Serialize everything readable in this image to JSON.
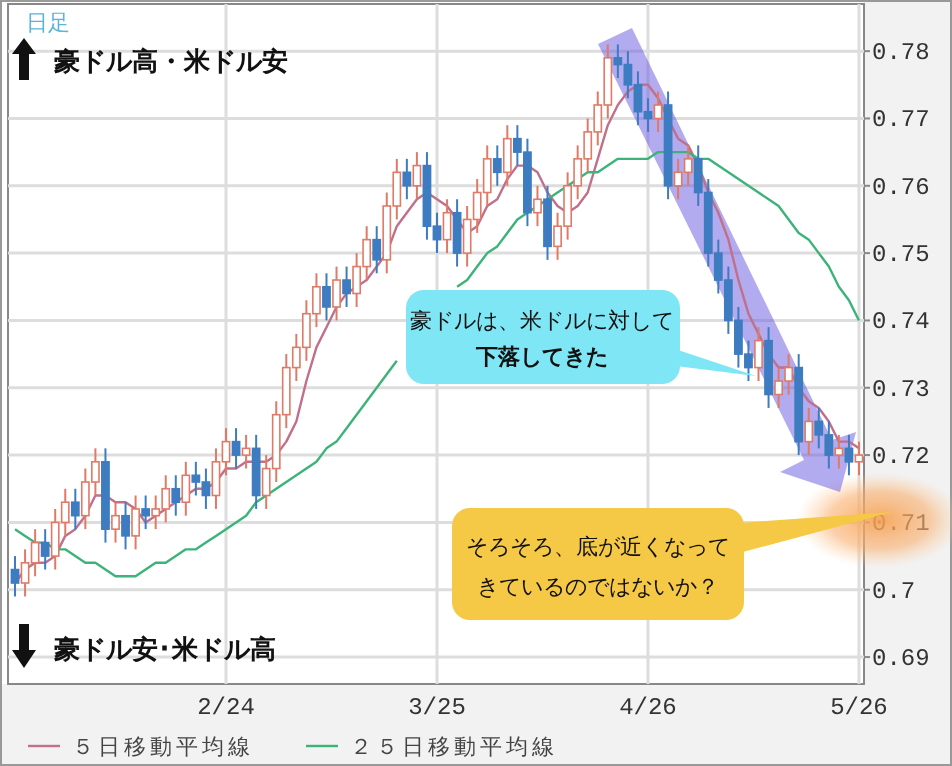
{
  "chart_data": {
    "type": "candlestick",
    "categories": [
      null,
      null,
      null,
      null,
      null,
      null,
      null,
      null,
      null,
      null,
      null,
      null,
      null,
      null,
      null,
      null,
      null,
      null,
      null,
      null,
      null,
      "2/24",
      null,
      null,
      null,
      null,
      null,
      null,
      null,
      null,
      null,
      null,
      null,
      null,
      null,
      null,
      null,
      null,
      null,
      null,
      null,
      null,
      "3/25",
      null,
      null,
      null,
      null,
      null,
      null,
      null,
      null,
      null,
      null,
      null,
      null,
      null,
      null,
      null,
      null,
      null,
      null,
      null,
      null,
      "4/26",
      null,
      null,
      null,
      null,
      null,
      null,
      null,
      null,
      null,
      null,
      null,
      null,
      null,
      null,
      null,
      null,
      null,
      null,
      null,
      null,
      "5/26"
    ],
    "ohlc": [
      [
        0.703,
        0.705,
        0.699,
        0.701
      ],
      [
        0.701,
        0.706,
        0.699,
        0.704
      ],
      [
        0.704,
        0.709,
        0.702,
        0.707
      ],
      [
        0.707,
        0.709,
        0.703,
        0.705
      ],
      [
        0.705,
        0.712,
        0.703,
        0.71
      ],
      [
        0.71,
        0.715,
        0.708,
        0.713
      ],
      [
        0.713,
        0.715,
        0.709,
        0.711
      ],
      [
        0.711,
        0.718,
        0.709,
        0.716
      ],
      [
        0.716,
        0.721,
        0.714,
        0.719
      ],
      [
        0.719,
        0.721,
        0.707,
        0.709
      ],
      [
        0.709,
        0.713,
        0.707,
        0.711
      ],
      [
        0.711,
        0.713,
        0.706,
        0.708
      ],
      [
        0.708,
        0.714,
        0.706,
        0.712
      ],
      [
        0.712,
        0.714,
        0.709,
        0.711
      ],
      [
        0.711,
        0.714,
        0.709,
        0.712
      ],
      [
        0.712,
        0.717,
        0.71,
        0.715
      ],
      [
        0.715,
        0.717,
        0.711,
        0.713
      ],
      [
        0.713,
        0.719,
        0.711,
        0.717
      ],
      [
        0.717,
        0.719,
        0.714,
        0.716
      ],
      [
        0.716,
        0.718,
        0.712,
        0.714
      ],
      [
        0.714,
        0.721,
        0.712,
        0.719
      ],
      [
        0.719,
        0.724,
        0.717,
        0.722
      ],
      [
        0.722,
        0.724,
        0.718,
        0.72
      ],
      [
        0.72,
        0.723,
        0.718,
        0.721
      ],
      [
        0.721,
        0.723,
        0.712,
        0.714
      ],
      [
        0.714,
        0.72,
        0.712,
        0.718
      ],
      [
        0.718,
        0.728,
        0.716,
        0.726
      ],
      [
        0.726,
        0.735,
        0.724,
        0.733
      ],
      [
        0.733,
        0.738,
        0.731,
        0.736
      ],
      [
        0.736,
        0.743,
        0.734,
        0.741
      ],
      [
        0.741,
        0.747,
        0.739,
        0.745
      ],
      [
        0.745,
        0.747,
        0.74,
        0.742
      ],
      [
        0.742,
        0.748,
        0.74,
        0.746
      ],
      [
        0.746,
        0.748,
        0.742,
        0.744
      ],
      [
        0.744,
        0.75,
        0.742,
        0.748
      ],
      [
        0.748,
        0.754,
        0.746,
        0.752
      ],
      [
        0.752,
        0.754,
        0.747,
        0.749
      ],
      [
        0.749,
        0.759,
        0.747,
        0.757
      ],
      [
        0.757,
        0.764,
        0.755,
        0.762
      ],
      [
        0.762,
        0.764,
        0.758,
        0.76
      ],
      [
        0.76,
        0.765,
        0.758,
        0.763
      ],
      [
        0.763,
        0.765,
        0.752,
        0.754
      ],
      [
        0.754,
        0.756,
        0.75,
        0.752
      ],
      [
        0.752,
        0.758,
        0.75,
        0.756
      ],
      [
        0.756,
        0.758,
        0.748,
        0.75
      ],
      [
        0.75,
        0.757,
        0.748,
        0.755
      ],
      [
        0.755,
        0.761,
        0.753,
        0.759
      ],
      [
        0.759,
        0.766,
        0.757,
        0.764
      ],
      [
        0.764,
        0.766,
        0.76,
        0.762
      ],
      [
        0.762,
        0.769,
        0.76,
        0.767
      ],
      [
        0.767,
        0.769,
        0.763,
        0.765
      ],
      [
        0.765,
        0.767,
        0.754,
        0.756
      ],
      [
        0.756,
        0.76,
        0.754,
        0.758
      ],
      [
        0.758,
        0.76,
        0.749,
        0.751
      ],
      [
        0.751,
        0.756,
        0.749,
        0.754
      ],
      [
        0.754,
        0.762,
        0.752,
        0.76
      ],
      [
        0.76,
        0.766,
        0.758,
        0.764
      ],
      [
        0.764,
        0.77,
        0.762,
        0.768
      ],
      [
        0.768,
        0.774,
        0.766,
        0.772
      ],
      [
        0.772,
        0.781,
        0.77,
        0.779
      ],
      [
        0.779,
        0.781,
        0.776,
        0.778
      ],
      [
        0.778,
        0.78,
        0.773,
        0.775
      ],
      [
        0.775,
        0.777,
        0.769,
        0.771
      ],
      [
        0.771,
        0.773,
        0.768,
        0.77
      ],
      [
        0.77,
        0.774,
        0.768,
        0.772
      ],
      [
        0.772,
        0.774,
        0.758,
        0.76
      ],
      [
        0.76,
        0.764,
        0.758,
        0.762
      ],
      [
        0.762,
        0.766,
        0.76,
        0.764
      ],
      [
        0.764,
        0.766,
        0.757,
        0.759
      ],
      [
        0.759,
        0.761,
        0.748,
        0.75
      ],
      [
        0.75,
        0.752,
        0.744,
        0.746
      ],
      [
        0.746,
        0.748,
        0.738,
        0.74
      ],
      [
        0.74,
        0.742,
        0.733,
        0.735
      ],
      [
        0.735,
        0.737,
        0.731,
        0.733
      ],
      [
        0.733,
        0.739,
        0.731,
        0.737
      ],
      [
        0.737,
        0.739,
        0.727,
        0.729
      ],
      [
        0.729,
        0.733,
        0.727,
        0.731
      ],
      [
        0.731,
        0.735,
        0.729,
        0.733
      ],
      [
        0.733,
        0.735,
        0.72,
        0.722
      ],
      [
        0.722,
        0.727,
        0.72,
        0.725
      ],
      [
        0.725,
        0.727,
        0.721,
        0.723
      ],
      [
        0.723,
        0.725,
        0.718,
        0.72
      ],
      [
        0.72,
        0.723,
        0.718,
        0.721
      ],
      [
        0.721,
        0.723,
        0.717,
        0.719
      ],
      [
        0.719,
        0.722,
        0.717,
        0.72
      ]
    ],
    "series": [
      {
        "name": "５日移動平均線",
        "type": "line",
        "color": "#c0708a",
        "values": [
          0.701,
          0.703,
          0.704,
          0.704,
          0.705,
          0.708,
          0.709,
          0.711,
          0.714,
          0.714,
          0.713,
          0.713,
          0.712,
          0.71,
          0.711,
          0.712,
          0.713,
          0.714,
          0.715,
          0.715,
          0.716,
          0.718,
          0.718,
          0.719,
          0.719,
          0.719,
          0.72,
          0.722,
          0.725,
          0.731,
          0.736,
          0.739,
          0.742,
          0.744,
          0.745,
          0.746,
          0.748,
          0.75,
          0.754,
          0.756,
          0.758,
          0.759,
          0.758,
          0.757,
          0.755,
          0.753,
          0.754,
          0.757,
          0.758,
          0.761,
          0.763,
          0.763,
          0.762,
          0.759,
          0.757,
          0.756,
          0.757,
          0.759,
          0.764,
          0.769,
          0.772,
          0.774,
          0.775,
          0.775,
          0.773,
          0.77,
          0.767,
          0.766,
          0.763,
          0.759,
          0.756,
          0.752,
          0.746,
          0.741,
          0.738,
          0.735,
          0.733,
          0.733,
          0.73,
          0.728,
          0.727,
          0.725,
          0.722,
          0.722,
          0.721
        ]
      },
      {
        "name": "２５日移動平均線",
        "type": "line",
        "color": "#3cb37a",
        "values": [
          0.709,
          0.708,
          0.707,
          0.707,
          0.706,
          0.706,
          0.705,
          0.704,
          0.704,
          0.703,
          0.702,
          0.702,
          0.702,
          0.703,
          0.704,
          0.704,
          0.705,
          0.706,
          0.706,
          0.707,
          0.708,
          0.709,
          0.71,
          0.711,
          0.713,
          0.714,
          0.715,
          0.716,
          0.717,
          0.718,
          0.719,
          0.721,
          0.722,
          0.724,
          0.726,
          0.728,
          0.73,
          0.732,
          0.734,
          null,
          null,
          null,
          null,
          null,
          0.745,
          0.746,
          0.748,
          0.75,
          0.751,
          0.753,
          0.755,
          0.756,
          0.757,
          0.758,
          0.759,
          0.76,
          0.761,
          0.762,
          0.762,
          0.763,
          0.764,
          0.764,
          0.764,
          0.764,
          0.765,
          0.765,
          0.765,
          0.765,
          0.764,
          0.764,
          0.763,
          0.762,
          0.761,
          0.76,
          0.759,
          0.758,
          0.757,
          0.755,
          0.753,
          0.752,
          0.75,
          0.748,
          0.745,
          0.743,
          0.74
        ]
      }
    ],
    "ylim": [
      0.686,
      0.787
    ],
    "yticks": [
      0.69,
      0.7,
      0.71,
      0.72,
      0.73,
      0.74,
      0.75,
      0.76,
      0.77,
      0.78
    ],
    "grid": true,
    "legend": "bottom",
    "annotations": [
      "日足",
      "豪ドル高・米ドル安",
      "豪ドル安･米ドル高",
      "豪ドルは、米ドルに対して",
      "下落してきた",
      "そろそろ、底が近くなって",
      "きているのではないか？"
    ]
  }
}
